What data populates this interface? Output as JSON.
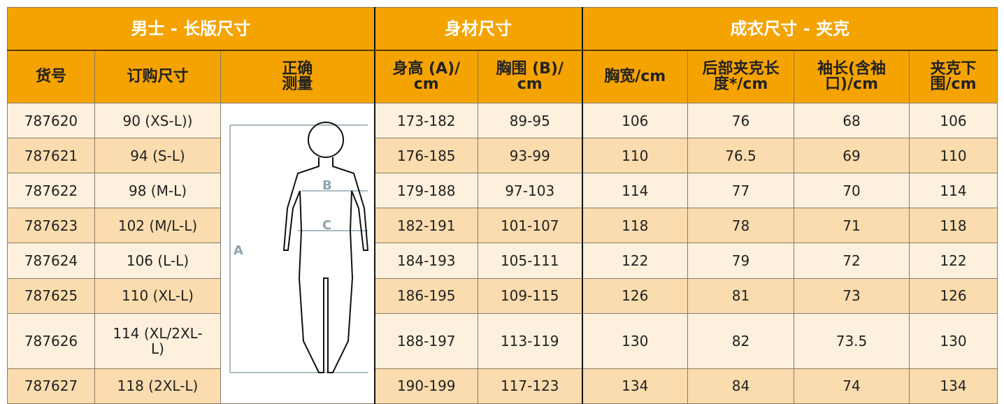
{
  "table": {
    "group_headers": [
      "男士 - 长版尺寸",
      "身材尺寸",
      "成衣尺寸 - 夹克"
    ],
    "headers": [
      "货号",
      "订购尺寸",
      "正确\n测量",
      "身高 (A)/\ncm",
      "胸围 (B)/\ncm",
      "胸宽/cm",
      "后部夹克长\n度*/cm",
      "袖长(含袖\n口)/cm",
      "夹克下\n围/cm"
    ],
    "rows": [
      [
        "787620",
        "90 (XS-L))",
        "173-182",
        "89-95",
        "106",
        "76",
        "68",
        "106"
      ],
      [
        "787621",
        "94 (S-L)",
        "176-185",
        "93-99",
        "110",
        "76.5",
        "69",
        "110"
      ],
      [
        "787622",
        "98 (M-L)",
        "179-188",
        "97-103",
        "114",
        "77",
        "70",
        "114"
      ],
      [
        "787623",
        "102 (M/L-L)",
        "182-191",
        "101-107",
        "118",
        "78",
        "71",
        "118"
      ],
      [
        "787624",
        "106 (L-L)",
        "184-193",
        "105-111",
        "122",
        "79",
        "72",
        "122"
      ],
      [
        "787625",
        "110 (XL-L)",
        "186-195",
        "109-115",
        "126",
        "81",
        "73",
        "126"
      ],
      [
        "787626",
        "114 (XL/2XL-\nL)",
        "188-197",
        "113-119",
        "130",
        "82",
        "73.5",
        "130"
      ],
      [
        "787627",
        "118 (2XL-L)",
        "190-199",
        "117-123",
        "134",
        "84",
        "74",
        "134"
      ]
    ],
    "diagram_labels": [
      "A",
      "B",
      "C"
    ]
  }
}
